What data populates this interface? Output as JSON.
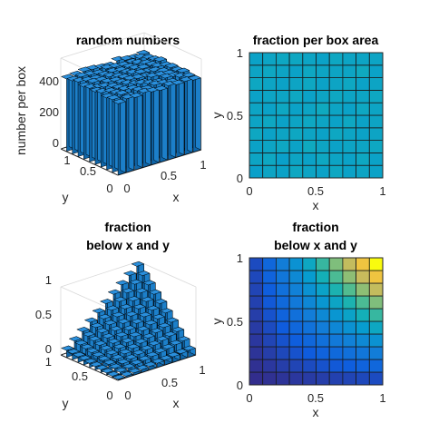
{
  "chart_data": [
    {
      "type": "bar3d",
      "title": "random numbers",
      "zlabel": "number per box",
      "xlabel": "x",
      "ylabel": "y",
      "xlim": [
        0,
        1
      ],
      "ylim": [
        0,
        1
      ],
      "zlim": [
        0,
        500
      ],
      "x_ticks": [
        "0",
        "0.5",
        "1"
      ],
      "y_ticks": [
        "0",
        "0.5",
        "1"
      ],
      "z_ticks": [
        "0",
        "200",
        "400"
      ],
      "grid_size": 10,
      "values": [
        [
          392,
          405,
          398,
          410,
          401,
          395,
          407,
          399,
          403,
          396
        ],
        [
          400,
          412,
          388,
          405,
          397,
          409,
          402,
          394,
          411,
          398
        ],
        [
          395,
          403,
          409,
          398,
          415,
          401,
          393,
          406,
          400,
          408
        ],
        [
          408,
          397,
          402,
          413,
          399,
          392,
          410,
          404,
          397,
          401
        ],
        [
          399,
          411,
          396,
          404,
          408,
          402,
          397,
          413,
          395,
          406
        ],
        [
          404,
          393,
          407,
          399,
          402,
          414,
          401,
          396,
          409,
          400
        ],
        [
          397,
          406,
          401,
          410,
          394,
          403,
          411,
          399,
          402,
          412
        ],
        [
          410,
          400,
          395,
          402,
          407,
          398,
          404,
          412,
          396,
          403
        ],
        [
          402,
          409,
          404,
          396,
          411,
          405,
          399,
          401,
          414,
          397
        ],
        [
          398,
          402,
          410,
          407,
          400,
          396,
          413,
          403,
          399,
          405
        ]
      ]
    },
    {
      "type": "heatmap",
      "title": "fraction per box area",
      "xlabel": "x",
      "ylabel": "y",
      "xlim": [
        0,
        1
      ],
      "ylim": [
        0,
        1
      ],
      "x_ticks": [
        "0",
        "0.5",
        "1"
      ],
      "y_ticks": [
        "0",
        "0.5",
        "1"
      ],
      "clim": [
        0,
        1
      ],
      "colormap": "parula",
      "grid_size": 10,
      "values": [
        [
          0.47,
          0.49,
          0.48,
          0.5,
          0.49,
          0.48,
          0.5,
          0.48,
          0.49,
          0.48
        ],
        [
          0.49,
          0.5,
          0.47,
          0.49,
          0.48,
          0.5,
          0.49,
          0.48,
          0.5,
          0.48
        ],
        [
          0.48,
          0.49,
          0.5,
          0.48,
          0.51,
          0.49,
          0.48,
          0.49,
          0.49,
          0.5
        ],
        [
          0.5,
          0.48,
          0.49,
          0.5,
          0.49,
          0.48,
          0.5,
          0.49,
          0.48,
          0.49
        ],
        [
          0.49,
          0.5,
          0.48,
          0.49,
          0.5,
          0.49,
          0.48,
          0.5,
          0.48,
          0.49
        ],
        [
          0.49,
          0.48,
          0.5,
          0.48,
          0.49,
          0.51,
          0.49,
          0.48,
          0.5,
          0.49
        ],
        [
          0.48,
          0.49,
          0.49,
          0.5,
          0.48,
          0.49,
          0.5,
          0.49,
          0.49,
          0.5
        ],
        [
          0.5,
          0.49,
          0.48,
          0.49,
          0.5,
          0.48,
          0.49,
          0.5,
          0.48,
          0.49
        ],
        [
          0.49,
          0.5,
          0.49,
          0.48,
          0.5,
          0.49,
          0.49,
          0.49,
          0.51,
          0.48
        ],
        [
          0.48,
          0.49,
          0.5,
          0.5,
          0.49,
          0.48,
          0.5,
          0.49,
          0.49,
          0.49
        ]
      ]
    },
    {
      "type": "bar3d",
      "title": "fraction below x and y",
      "title_lines": [
        "fraction",
        "below x and y"
      ],
      "xlabel": "x",
      "ylabel": "y",
      "xlim": [
        0,
        1
      ],
      "ylim": [
        0,
        1
      ],
      "zlim": [
        0,
        1
      ],
      "x_ticks": [
        "0",
        "0.5",
        "1"
      ],
      "y_ticks": [
        "0",
        "0.5",
        "1"
      ],
      "z_ticks": [
        "0",
        "0.5",
        "1"
      ],
      "grid_size": 10,
      "formula": "value[i][j] = x_j * y_i (cumulative fraction)"
    },
    {
      "type": "heatmap",
      "title": "fraction below x and y",
      "title_lines": [
        "fraction",
        "below x and y"
      ],
      "xlabel": "x",
      "ylabel": "y",
      "xlim": [
        0,
        1
      ],
      "ylim": [
        0,
        1
      ],
      "x_ticks": [
        "0",
        "0.5",
        "1"
      ],
      "y_ticks": [
        "0",
        "0.5",
        "1"
      ],
      "clim": [
        0,
        1
      ],
      "colormap": "parula",
      "grid_size": 10,
      "formula": "value[i][j] = x_j * y_i (cumulative fraction)"
    }
  ]
}
